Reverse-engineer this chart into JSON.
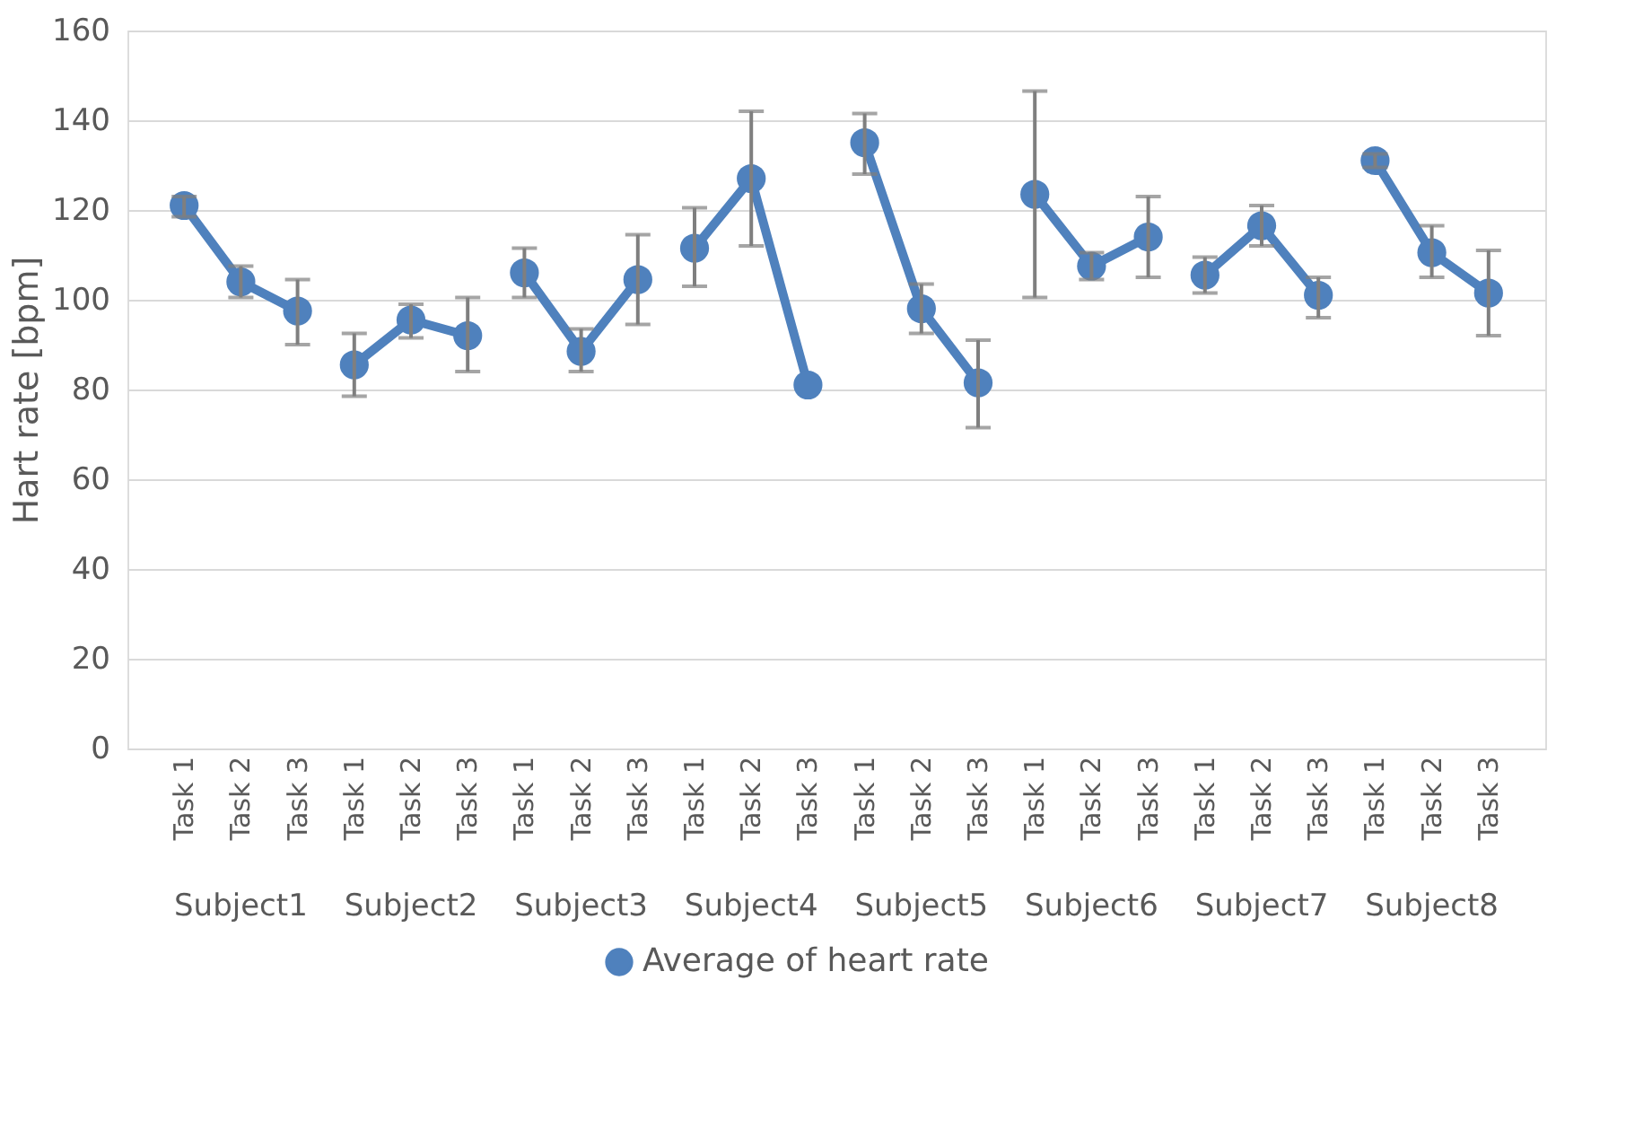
{
  "chart_data": {
    "type": "line",
    "ylabel": "Hart rate [bpm]",
    "ylim": [
      0,
      160
    ],
    "yticks": [
      0,
      20,
      40,
      60,
      80,
      100,
      120,
      140,
      160
    ],
    "grid": "y",
    "legend": "bottom",
    "marker": "circle",
    "line_style": "solid",
    "categories": [
      "Task 1",
      "Task 2",
      "Task 3",
      "Task 1",
      "Task 2",
      "Task 3",
      "Task 1",
      "Task 2",
      "Task 3",
      "Task 1",
      "Task 2",
      "Task 3",
      "Task 1",
      "Task 2",
      "Task 3",
      "Task 1",
      "Task 2",
      "Task 3",
      "Task 1",
      "Task 2",
      "Task 3",
      "Task 1",
      "Task 2",
      "Task 3"
    ],
    "annotations": [
      "Subject1",
      "Subject2",
      "Subject3",
      "Subject4",
      "Subject5",
      "Subject6",
      "Subject7",
      "Subject8"
    ],
    "series": [
      {
        "name": "Average of heart rate",
        "color": "#4f81bd",
        "values": [
          121,
          104,
          97.5,
          null,
          null,
          null,
          null,
          null,
          null,
          null,
          null,
          null,
          null,
          null,
          null,
          null,
          null,
          null,
          null,
          null,
          null,
          null,
          null,
          null
        ],
        "errors": [
          [
            118.5,
            123
          ],
          [
            100.5,
            107.5
          ],
          [
            90,
            104.5
          ],
          null,
          null,
          null,
          null,
          null,
          null,
          null,
          null,
          null,
          null,
          null,
          null,
          null,
          null,
          null,
          null,
          null,
          null,
          null,
          null,
          null
        ]
      },
      {
        "color": "#4f81bd",
        "values": [
          null,
          null,
          null,
          85.5,
          95.5,
          92,
          null,
          null,
          null,
          null,
          null,
          null,
          null,
          null,
          null,
          null,
          null,
          null,
          null,
          null,
          null,
          null,
          null,
          null
        ],
        "errors": [
          null,
          null,
          null,
          [
            78.5,
            92.5
          ],
          [
            91.5,
            99
          ],
          [
            84,
            100.5
          ],
          null,
          null,
          null,
          null,
          null,
          null,
          null,
          null,
          null,
          null,
          null,
          null,
          null,
          null,
          null,
          null,
          null,
          null
        ]
      },
      {
        "color": "#4f81bd",
        "values": [
          null,
          null,
          null,
          null,
          null,
          null,
          106,
          88.5,
          104.5,
          null,
          null,
          null,
          null,
          null,
          null,
          null,
          null,
          null,
          null,
          null,
          null,
          null,
          null,
          null
        ],
        "errors": [
          null,
          null,
          null,
          null,
          null,
          null,
          [
            100.5,
            111.5
          ],
          [
            84,
            93.5
          ],
          [
            94.5,
            114.5
          ],
          null,
          null,
          null,
          null,
          null,
          null,
          null,
          null,
          null,
          null,
          null,
          null,
          null,
          null,
          null
        ]
      },
      {
        "color": "#4f81bd",
        "values": [
          null,
          null,
          null,
          null,
          null,
          null,
          null,
          null,
          null,
          111.5,
          127,
          81,
          null,
          null,
          null,
          null,
          null,
          null,
          null,
          null,
          null,
          null,
          null,
          null
        ],
        "errors": [
          null,
          null,
          null,
          null,
          null,
          null,
          null,
          null,
          null,
          [
            103,
            120.5
          ],
          [
            112,
            142
          ],
          null,
          null,
          null,
          null,
          null,
          null,
          null,
          null,
          null,
          null,
          null,
          null,
          null
        ]
      },
      {
        "color": "#4f81bd",
        "values": [
          null,
          null,
          null,
          null,
          null,
          null,
          null,
          null,
          null,
          null,
          null,
          null,
          135,
          98,
          81.5,
          null,
          null,
          null,
          null,
          null,
          null,
          null,
          null,
          null
        ],
        "errors": [
          null,
          null,
          null,
          null,
          null,
          null,
          null,
          null,
          null,
          null,
          null,
          null,
          [
            128,
            141.5
          ],
          [
            92.5,
            103.5
          ],
          [
            71.5,
            91
          ],
          null,
          null,
          null,
          null,
          null,
          null,
          null,
          null,
          null
        ]
      },
      {
        "color": "#4f81bd",
        "values": [
          null,
          null,
          null,
          null,
          null,
          null,
          null,
          null,
          null,
          null,
          null,
          null,
          null,
          null,
          null,
          123.5,
          107.5,
          114,
          null,
          null,
          null,
          null,
          null,
          null
        ],
        "errors": [
          null,
          null,
          null,
          null,
          null,
          null,
          null,
          null,
          null,
          null,
          null,
          null,
          null,
          null,
          null,
          [
            100.5,
            146.5
          ],
          [
            104.5,
            110.5
          ],
          [
            105,
            123
          ],
          null,
          null,
          null,
          null,
          null,
          null
        ]
      },
      {
        "color": "#4f81bd",
        "values": [
          null,
          null,
          null,
          null,
          null,
          null,
          null,
          null,
          null,
          null,
          null,
          null,
          null,
          null,
          null,
          null,
          null,
          null,
          105.5,
          116.5,
          101,
          null,
          null,
          null
        ],
        "errors": [
          null,
          null,
          null,
          null,
          null,
          null,
          null,
          null,
          null,
          null,
          null,
          null,
          null,
          null,
          null,
          null,
          null,
          null,
          [
            101.5,
            109.5
          ],
          [
            112,
            121
          ],
          [
            96,
            105
          ],
          null,
          null,
          null
        ]
      },
      {
        "color": "#4f81bd",
        "values": [
          null,
          null,
          null,
          null,
          null,
          null,
          null,
          null,
          null,
          null,
          null,
          null,
          null,
          null,
          null,
          null,
          null,
          null,
          null,
          null,
          null,
          131,
          110.5,
          101.5
        ],
        "errors": [
          null,
          null,
          null,
          null,
          null,
          null,
          null,
          null,
          null,
          null,
          null,
          null,
          null,
          null,
          null,
          null,
          null,
          null,
          null,
          null,
          null,
          [
            129.5,
            132.5
          ],
          [
            105,
            116.5
          ],
          [
            92,
            111
          ]
        ]
      }
    ]
  }
}
